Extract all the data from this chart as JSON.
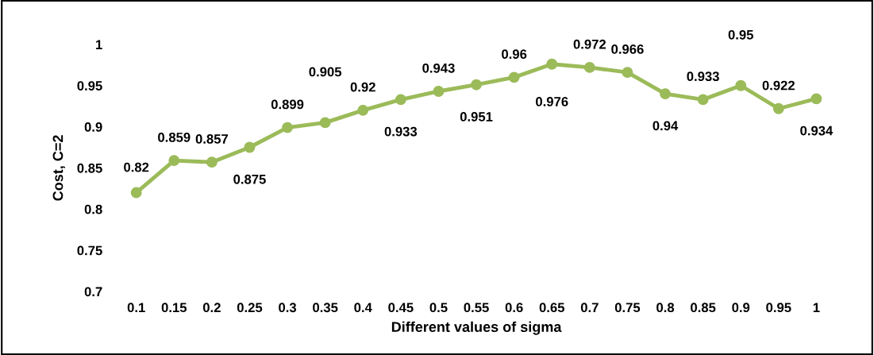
{
  "chart_data": {
    "type": "line",
    "xlabel": "Different values of sigma",
    "ylabel": "Cost, C=2",
    "categories": [
      "0.1",
      "0.15",
      "0.2",
      "0.25",
      "0.3",
      "0.35",
      "0.4",
      "0.45",
      "0.5",
      "0.55",
      "0.6",
      "0.65",
      "0.7",
      "0.75",
      "0.8",
      "0.85",
      "0.9",
      "0.95",
      "1"
    ],
    "series": [
      {
        "color": "#9bbb59",
        "values": [
          0.82,
          0.859,
          0.857,
          0.875,
          0.899,
          0.905,
          0.92,
          0.933,
          0.943,
          0.951,
          0.96,
          0.976,
          0.972,
          0.966,
          0.94,
          0.933,
          0.95,
          0.922,
          0.934
        ]
      }
    ],
    "ylim": [
      0.7,
      1.0
    ],
    "yticks": [
      0.7,
      0.75,
      0.8,
      0.85,
      0.9,
      0.95,
      {
        "value": 1.0,
        "label": "1"
      }
    ],
    "data_labels": true,
    "marker": "circle",
    "line_style": "solid",
    "grid": false,
    "legend": false
  }
}
